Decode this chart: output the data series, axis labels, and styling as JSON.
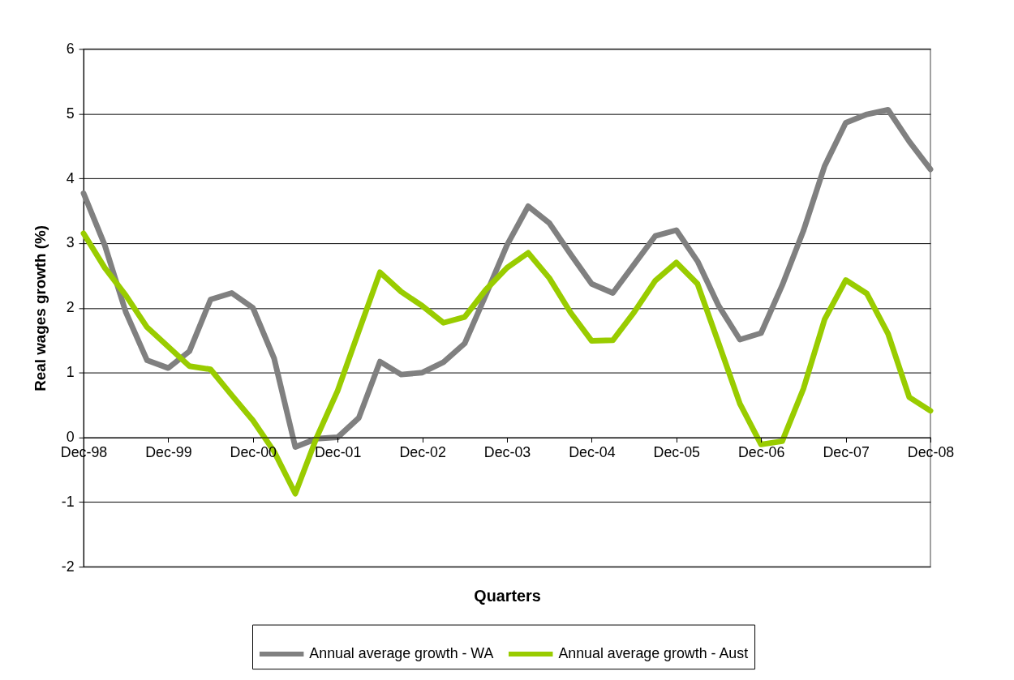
{
  "chart_data": {
    "type": "line",
    "xlabel": "Quarters",
    "ylabel": "Real wages growth (%)",
    "categories": [
      "Dec-98",
      null,
      null,
      null,
      "Dec-99",
      null,
      null,
      null,
      "Dec-00",
      null,
      null,
      null,
      "Dec-01",
      null,
      null,
      null,
      "Dec-02",
      null,
      null,
      null,
      "Dec-03",
      null,
      null,
      null,
      "Dec-04",
      null,
      null,
      null,
      "Dec-05",
      null,
      null,
      null,
      "Dec-06",
      null,
      null,
      null,
      "Dec-07",
      null,
      null,
      null,
      "Dec-08"
    ],
    "series": [
      {
        "name": "Annual average growth - WA",
        "color": "#808080",
        "values": [
          3.77,
          2.97,
          1.93,
          1.19,
          1.07,
          1.33,
          2.13,
          2.23,
          2.0,
          1.22,
          -0.15,
          -0.02,
          0.0,
          0.3,
          1.17,
          0.97,
          1.0,
          1.16,
          1.45,
          2.2,
          2.97,
          3.57,
          3.31,
          2.83,
          2.37,
          2.23,
          2.67,
          3.11,
          3.2,
          2.72,
          2.03,
          1.51,
          1.61,
          2.35,
          3.19,
          4.19,
          4.86,
          4.99,
          5.06,
          4.57,
          4.14
        ]
      },
      {
        "name": "Annual average growth - Aust",
        "color": "#99cc00",
        "values": [
          3.15,
          2.62,
          2.19,
          1.7,
          1.4,
          1.1,
          1.05,
          0.65,
          0.26,
          -0.22,
          -0.87,
          -0.01,
          0.72,
          1.64,
          2.55,
          2.25,
          2.03,
          1.77,
          1.86,
          2.28,
          2.62,
          2.85,
          2.46,
          1.93,
          1.49,
          1.5,
          1.93,
          2.42,
          2.7,
          2.37,
          1.45,
          0.52,
          -0.11,
          -0.06,
          0.75,
          1.82,
          2.43,
          2.22,
          1.6,
          0.62,
          0.41
        ]
      }
    ],
    "ylim": [
      -2,
      6
    ],
    "yticks": [
      -2,
      -1,
      0,
      1,
      2,
      3,
      4,
      5,
      6
    ],
    "grid": "y",
    "legend": "bottom",
    "marker": "none",
    "line_style": "solid"
  }
}
